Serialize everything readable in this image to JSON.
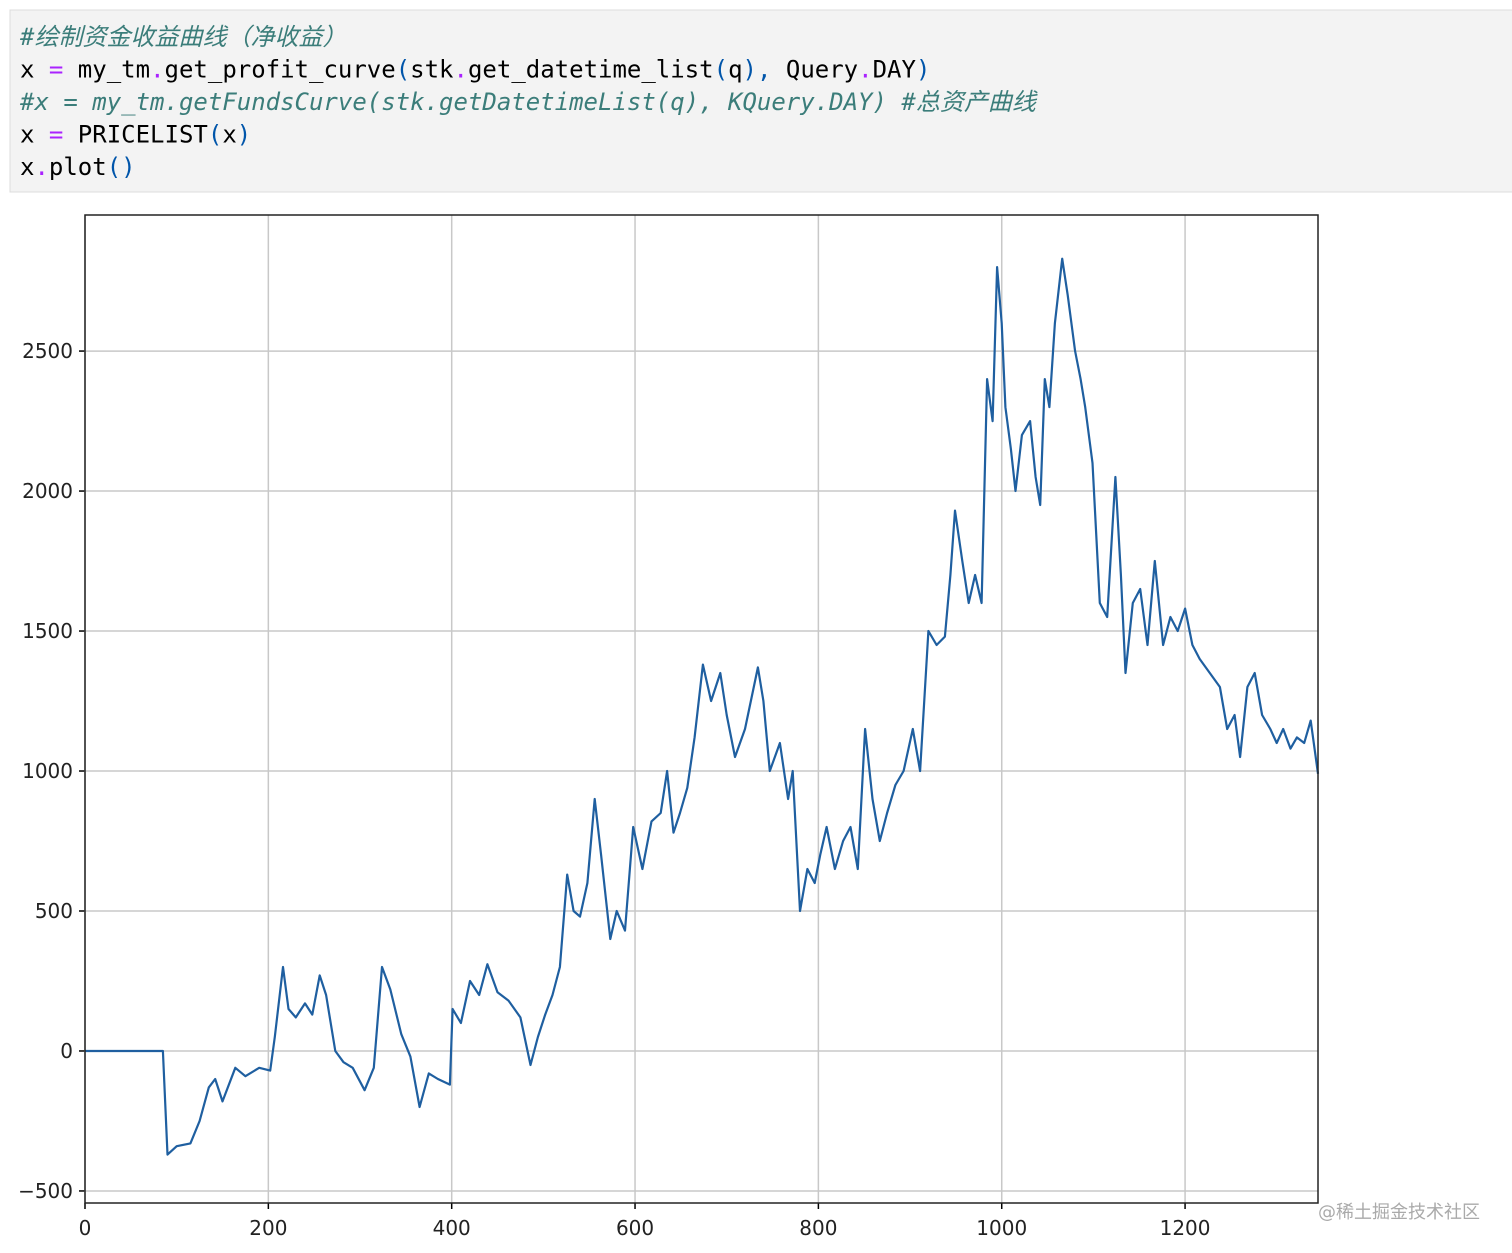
{
  "code": {
    "lines": [
      {
        "italic": true,
        "tokens": [
          {
            "text": "#绘制资金收益曲线（净收益）",
            "color": "#3b7d7a"
          }
        ]
      },
      {
        "italic": false,
        "tokens": [
          {
            "text": "x ",
            "color": "#000000"
          },
          {
            "text": "=",
            "color": "#aa22ff"
          },
          {
            "text": " my_tm",
            "color": "#000000"
          },
          {
            "text": ".",
            "color": "#aa22ff"
          },
          {
            "text": "get_profit_curve",
            "color": "#000000"
          },
          {
            "text": "(",
            "color": "#0055aa"
          },
          {
            "text": "stk",
            "color": "#000000"
          },
          {
            "text": ".",
            "color": "#aa22ff"
          },
          {
            "text": "get_datetime_list",
            "color": "#000000"
          },
          {
            "text": "(",
            "color": "#0055aa"
          },
          {
            "text": "q",
            "color": "#000000"
          },
          {
            "text": "),",
            "color": "#0055aa"
          },
          {
            "text": " Query",
            "color": "#000000"
          },
          {
            "text": ".",
            "color": "#aa22ff"
          },
          {
            "text": "DAY",
            "color": "#000000"
          },
          {
            "text": ")",
            "color": "#0055aa"
          }
        ]
      },
      {
        "italic": true,
        "tokens": [
          {
            "text": "#x = my_tm.getFundsCurve(stk.getDatetimeList(q), KQuery.DAY) #总资产曲线",
            "color": "#3b7d7a"
          }
        ]
      },
      {
        "italic": false,
        "tokens": [
          {
            "text": "x ",
            "color": "#000000"
          },
          {
            "text": "=",
            "color": "#aa22ff"
          },
          {
            "text": " PRICELIST",
            "color": "#000000"
          },
          {
            "text": "(",
            "color": "#0055aa"
          },
          {
            "text": "x",
            "color": "#000000"
          },
          {
            "text": ")",
            "color": "#0055aa"
          }
        ]
      },
      {
        "italic": false,
        "tokens": [
          {
            "text": "x",
            "color": "#000000"
          },
          {
            "text": ".",
            "color": "#aa22ff"
          },
          {
            "text": "plot",
            "color": "#000000"
          },
          {
            "text": "()",
            "color": "#0055aa"
          }
        ]
      }
    ]
  },
  "chart_data": {
    "type": "line",
    "color": "#1f5fa0",
    "grid": true,
    "xlim": [
      0,
      1345
    ],
    "ylim": [
      -543,
      2986
    ],
    "xticks": [
      0,
      200,
      400,
      600,
      800,
      1000,
      1200
    ],
    "yticks": [
      {
        "value": -500,
        "label": "−500"
      },
      0,
      500,
      1000,
      1500,
      2000,
      2500
    ],
    "x": [
      0,
      85,
      90,
      100,
      115,
      125,
      135,
      142,
      150,
      164,
      175,
      190,
      202,
      207,
      216,
      222,
      230,
      240,
      248,
      256,
      263,
      273,
      282,
      292,
      305,
      315,
      324,
      333,
      345,
      355,
      365,
      375,
      385,
      398,
      401,
      410,
      420,
      430,
      439,
      450,
      462,
      475,
      486,
      494,
      502,
      510,
      518,
      526,
      533,
      540,
      548,
      556,
      563,
      573,
      580,
      589,
      598,
      608,
      618,
      628,
      635,
      642,
      649,
      657,
      665,
      674,
      683,
      693,
      700,
      709,
      720,
      734,
      740,
      747,
      758,
      767,
      772,
      780,
      788,
      796,
      802,
      809,
      818,
      827,
      835,
      843,
      851,
      859,
      867,
      875,
      884,
      893,
      903,
      911,
      920,
      929,
      938,
      944,
      949,
      957,
      964,
      971,
      978,
      984,
      990,
      995,
      1000,
      1004,
      1010,
      1015,
      1022,
      1031,
      1037,
      1042,
      1047,
      1052,
      1058,
      1066,
      1072,
      1080,
      1086,
      1091,
      1099,
      1107,
      1115,
      1124,
      1130,
      1135,
      1143,
      1151,
      1159,
      1167,
      1176,
      1184,
      1192,
      1200,
      1208,
      1216,
      1227,
      1238,
      1246,
      1254,
      1260,
      1268,
      1276,
      1284,
      1293,
      1300,
      1307,
      1315,
      1322,
      1330,
      1337,
      1345
    ],
    "values": [
      0,
      0,
      -370,
      -340,
      -330,
      -250,
      -130,
      -100,
      -180,
      -60,
      -90,
      -60,
      -70,
      50,
      300,
      150,
      120,
      170,
      130,
      270,
      200,
      0,
      -40,
      -60,
      -140,
      -60,
      300,
      220,
      60,
      -20,
      -200,
      -80,
      -100,
      -120,
      150,
      100,
      250,
      200,
      310,
      210,
      180,
      120,
      -50,
      50,
      130,
      200,
      300,
      630,
      500,
      480,
      600,
      900,
      700,
      400,
      500,
      430,
      800,
      650,
      820,
      850,
      1000,
      780,
      850,
      940,
      1120,
      1380,
      1250,
      1350,
      1200,
      1050,
      1150,
      1370,
      1250,
      1000,
      1100,
      900,
      1000,
      500,
      650,
      600,
      700,
      800,
      650,
      750,
      800,
      650,
      1150,
      900,
      750,
      850,
      950,
      1000,
      1150,
      1000,
      1500,
      1450,
      1480,
      1700,
      1930,
      1750,
      1600,
      1700,
      1600,
      2400,
      2250,
      2800,
      2600,
      2300,
      2150,
      2000,
      2200,
      2250,
      2050,
      1950,
      2400,
      2300,
      2600,
      2830,
      2700,
      2500,
      2400,
      2300,
      2100,
      1600,
      1550,
      2050,
      1700,
      1350,
      1600,
      1650,
      1450,
      1750,
      1450,
      1550,
      1500,
      1580,
      1450,
      1400,
      1350,
      1300,
      1150,
      1200,
      1050,
      1300,
      1350,
      1200,
      1150,
      1100,
      1150,
      1080,
      1120,
      1100,
      1180,
      990
    ]
  },
  "watermark": "@稀土掘金技术社区"
}
